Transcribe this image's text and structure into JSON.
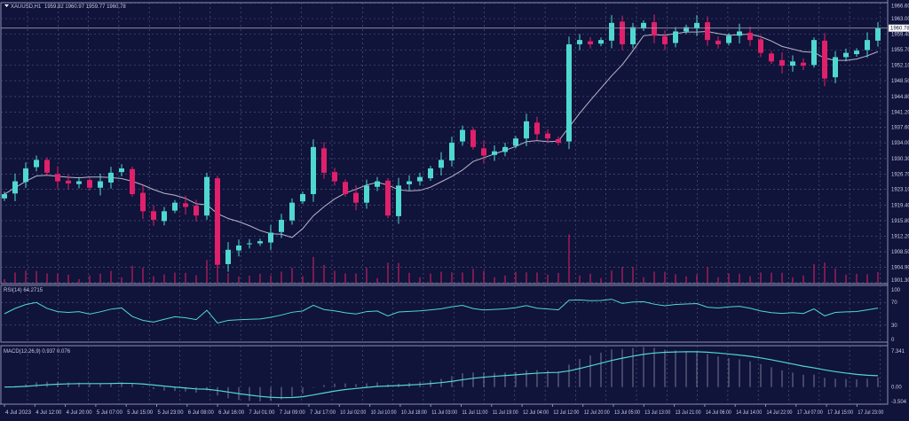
{
  "header": {
    "symbol_label": "XAUUSD,H1",
    "ohlc": "1959.82 1960.97 1959.77 1960.78",
    "menu_icon": "triangle-down-icon"
  },
  "price_axis": {
    "ticks": [
      "1966.60",
      "1963.00",
      "1959.40",
      "1955.70",
      "1952.10",
      "1948.50",
      "1944.80",
      "1941.20",
      "1937.60",
      "1934.00",
      "1930.30",
      "1926.70",
      "1923.10",
      "1919.40",
      "1915.80",
      "1912.20",
      "1908.50",
      "1904.90",
      "1901.30"
    ],
    "current_price": "1960.78"
  },
  "rsi": {
    "label": "RSI(14) 64.2715",
    "ticks": [
      "100",
      "70",
      "30",
      "0"
    ]
  },
  "macd": {
    "label": "MACD(12,26,9) 0.937 0.076",
    "ticks": [
      "7.341",
      "0.00",
      "-3.504"
    ]
  },
  "time_axis": {
    "ticks": [
      "4 Jul 2023",
      "4 Jul 12:00",
      "4 Jul 20:00",
      "5 Jul 07:00",
      "5 Jul 15:00",
      "5 Jul 23:00",
      "6 Jul 08:00",
      "6 Jul 16:00",
      "7 Jul 01:00",
      "7 Jul 09:00",
      "7 Jul 17:00",
      "10 Jul 02:00",
      "10 Jul 10:00",
      "10 Jul 18:00",
      "11 Jul 03:00",
      "11 Jul 11:00",
      "11 Jul 19:00",
      "12 Jul 04:00",
      "12 Jul 12:00",
      "12 Jul 20:00",
      "13 Jul 05:00",
      "13 Jul 13:00",
      "13 Jul 21:00",
      "14 Jul 06:00",
      "14 Jul 14:00",
      "14 Jul 22:00",
      "17 Jul 07:00",
      "17 Jul 15:00",
      "17 Jul 23:00"
    ]
  },
  "colors": {
    "background": "#10133a",
    "bull": "#4fd8d0",
    "bear": "#e0206a",
    "grid": "#5a5f8a",
    "ma": "#b8b8c8",
    "indicator": "#4fd8d0",
    "volume": "#c0205e"
  },
  "chart_data": {
    "type": "candlestick",
    "symbol": "XAUUSD",
    "timeframe": "H1",
    "ylim": [
      1901.3,
      1966.6
    ],
    "closes": [
      1922,
      1925,
      1928,
      1930,
      1927,
      1925,
      1924.5,
      1925,
      1923.5,
      1925,
      1927,
      1928,
      1922,
      1918,
      1916,
      1918,
      1920,
      1919,
      1917,
      1926,
      1905.5,
      1909,
      1910,
      1910.5,
      1911,
      1913,
      1916,
      1920,
      1922,
      1933,
      1927,
      1925,
      1922,
      1920,
      1924,
      1925,
      1917,
      1924,
      1925,
      1926,
      1928,
      1930,
      1934,
      1937,
      1933,
      1931,
      1932,
      1933,
      1935,
      1939,
      1936,
      1935,
      1934,
      1957,
      1958,
      1957,
      1958,
      1962,
      1957,
      1961,
      1962,
      1959,
      1957,
      1960,
      1961,
      1962,
      1958,
      1957,
      1959,
      1960,
      1958,
      1955,
      1953,
      1952,
      1953,
      1952,
      1958,
      1949,
      1954,
      1955,
      1955.5,
      1958,
      1960.78
    ],
    "rsi_levels": [
      70,
      30
    ],
    "rsi_range": [
      0,
      100
    ],
    "macd_range": [
      -3.504,
      7.341
    ]
  }
}
